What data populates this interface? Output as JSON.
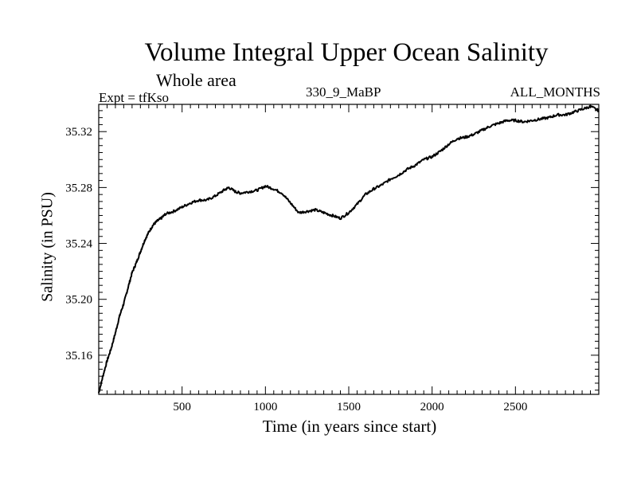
{
  "chart_data": {
    "type": "line",
    "title": "Volume Integral Upper Ocean Salinity",
    "subtitle": "Whole area",
    "annotations": {
      "experiment": "Expt = tfKso",
      "run": "330_9_MaBP",
      "period": "ALL_MONTHS"
    },
    "xlabel": "Time (in years since start)",
    "ylabel": "Salinity (in PSU)",
    "xlim": [
      0,
      3000
    ],
    "ylim": [
      35.132,
      35.3395
    ],
    "xticks": [
      500,
      1000,
      1500,
      2000,
      2500
    ],
    "xtick_labels": [
      "500",
      "1000",
      "1500",
      "2000",
      "2500"
    ],
    "yticks": [
      35.16,
      35.2,
      35.24,
      35.28,
      35.32
    ],
    "ytick_labels": [
      "35.16",
      "35.20",
      "35.24",
      "35.28",
      "35.32"
    ],
    "series": [
      {
        "name": "Salinity",
        "color": "#000000",
        "x": [
          0,
          25,
          50,
          75,
          100,
          125,
          150,
          175,
          200,
          225,
          250,
          275,
          300,
          325,
          350,
          375,
          400,
          450,
          500,
          550,
          600,
          650,
          700,
          750,
          780,
          820,
          850,
          900,
          950,
          1000,
          1050,
          1100,
          1150,
          1200,
          1250,
          1300,
          1350,
          1400,
          1450,
          1500,
          1550,
          1600,
          1650,
          1700,
          1750,
          1800,
          1850,
          1900,
          1950,
          2000,
          2050,
          2100,
          2150,
          2200,
          2250,
          2300,
          2350,
          2400,
          2450,
          2500,
          2550,
          2600,
          2650,
          2700,
          2750,
          2800,
          2850,
          2900,
          2950,
          3000
        ],
        "values": [
          35.133,
          35.145,
          35.156,
          35.165,
          35.176,
          35.188,
          35.197,
          35.208,
          35.219,
          35.226,
          35.234,
          35.242,
          35.248,
          35.253,
          35.256,
          35.258,
          35.261,
          35.263,
          35.266,
          35.269,
          35.271,
          35.271,
          35.274,
          35.278,
          35.28,
          35.277,
          35.276,
          35.277,
          35.278,
          35.281,
          35.279,
          35.276,
          35.269,
          35.262,
          35.263,
          35.264,
          35.262,
          35.26,
          35.258,
          35.262,
          35.268,
          35.275,
          35.279,
          35.282,
          35.286,
          35.289,
          35.293,
          35.296,
          35.3,
          35.302,
          35.306,
          35.311,
          35.315,
          35.316,
          35.318,
          35.321,
          35.324,
          35.326,
          35.328,
          35.328,
          35.327,
          35.328,
          35.329,
          35.33,
          35.332,
          35.332,
          35.334,
          35.336,
          35.338,
          35.335
        ]
      }
    ]
  }
}
